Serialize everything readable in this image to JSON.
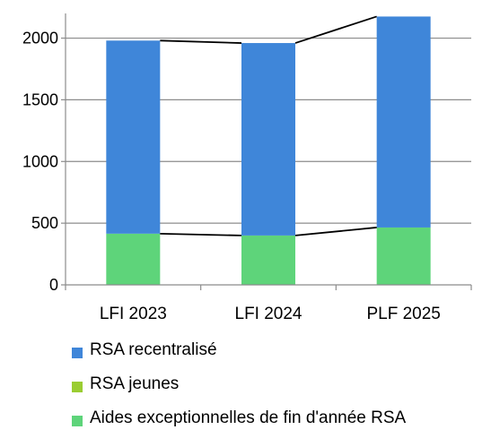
{
  "chart_data": {
    "type": "bar",
    "stacked": true,
    "categories": [
      "LFI 2023",
      "LFI 2024",
      "PLF 2025"
    ],
    "series": [
      {
        "name": "Aides exceptionnelles de fin d'année RSA",
        "values": [
          415,
          400,
          465
        ],
        "color": "#5ed47a"
      },
      {
        "name": "RSA jeunes",
        "values": [
          0,
          0,
          0
        ],
        "color": "#9acd32"
      },
      {
        "name": "RSA recentralisé",
        "values": [
          1565,
          1560,
          1710
        ],
        "color": "#3f86d9"
      }
    ],
    "connector_lines": true,
    "yticks": [
      0,
      500,
      1000,
      1500,
      2000
    ],
    "ylim": [
      0,
      2200
    ],
    "grid": true,
    "legend_position": "bottom"
  },
  "legend": {
    "items": [
      {
        "label": "RSA recentralisé",
        "color": "#3f86d9"
      },
      {
        "label": "RSA jeunes",
        "color": "#9acd32"
      },
      {
        "label": "Aides exceptionnelles de fin d'année RSA",
        "color": "#5ed47a"
      }
    ]
  }
}
